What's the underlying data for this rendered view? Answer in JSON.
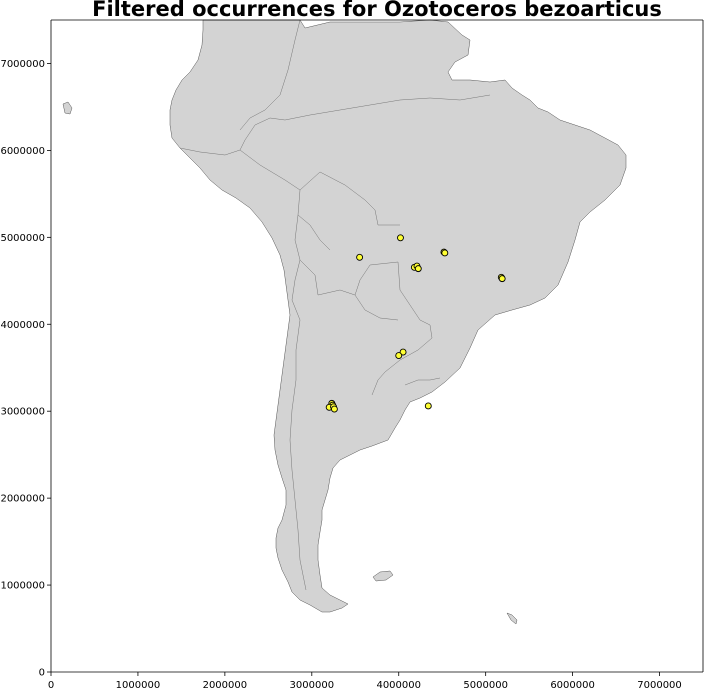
{
  "chart_data": {
    "type": "scatter",
    "title": "Filtered occurrences for Ozotoceros bezoarticus",
    "xlabel": "",
    "ylabel": "",
    "xlim": [
      0,
      7500000
    ],
    "ylim": [
      0,
      7500000
    ],
    "x_ticks": [
      0,
      1000000,
      2000000,
      3000000,
      4000000,
      5000000,
      6000000,
      7000000
    ],
    "y_ticks": [
      0,
      1000000,
      2000000,
      3000000,
      4000000,
      5000000,
      6000000,
      7000000
    ],
    "x_tick_labels": [
      "0",
      "1000000",
      "2000000",
      "3000000",
      "4000000",
      "5000000",
      "6000000",
      "7000000"
    ],
    "y_tick_labels": [
      "0",
      "1000000",
      "2000000",
      "3000000",
      "4000000",
      "5000000",
      "6000000",
      "7000000"
    ],
    "grid": false,
    "basemap": "South America country boundaries",
    "colors": {
      "point_fill": "#ffff33",
      "point_edge": "#000000",
      "land": "#d3d3d3",
      "border": "#777777"
    },
    "points": [
      {
        "x": 4020000,
        "y": 4995000
      },
      {
        "x": 4520000,
        "y": 4830000
      },
      {
        "x": 4530000,
        "y": 4820000
      },
      {
        "x": 3550000,
        "y": 4770000
      },
      {
        "x": 4180000,
        "y": 4655000
      },
      {
        "x": 4210000,
        "y": 4670000
      },
      {
        "x": 4225000,
        "y": 4640000
      },
      {
        "x": 5180000,
        "y": 4540000
      },
      {
        "x": 5190000,
        "y": 4525000
      },
      {
        "x": 4050000,
        "y": 3680000
      },
      {
        "x": 4000000,
        "y": 3640000
      },
      {
        "x": 3230000,
        "y": 3090000
      },
      {
        "x": 3240000,
        "y": 3070000
      },
      {
        "x": 3200000,
        "y": 3045000
      },
      {
        "x": 3250000,
        "y": 3050000
      },
      {
        "x": 3260000,
        "y": 3025000
      },
      {
        "x": 4340000,
        "y": 3060000
      }
    ]
  }
}
